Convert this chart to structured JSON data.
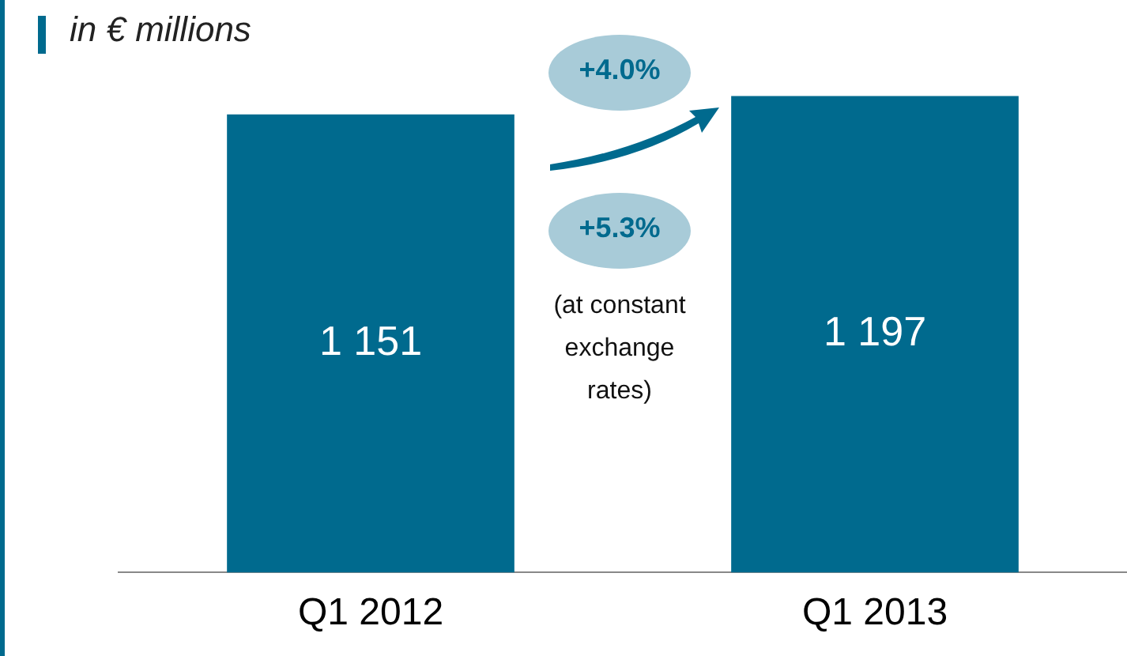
{
  "chart_data": {
    "type": "bar",
    "title": "in € millions",
    "categories": [
      "Q1 2012",
      "Q1 2013"
    ],
    "values": [
      1151,
      1197
    ],
    "value_labels": [
      "1 151",
      "1 197"
    ],
    "color": "#006a8e",
    "tick_labels": "x",
    "grid": false,
    "legend": false,
    "annotations": [
      "+4.0%",
      "+5.3%",
      "(at constant exchange rates)"
    ]
  }
}
